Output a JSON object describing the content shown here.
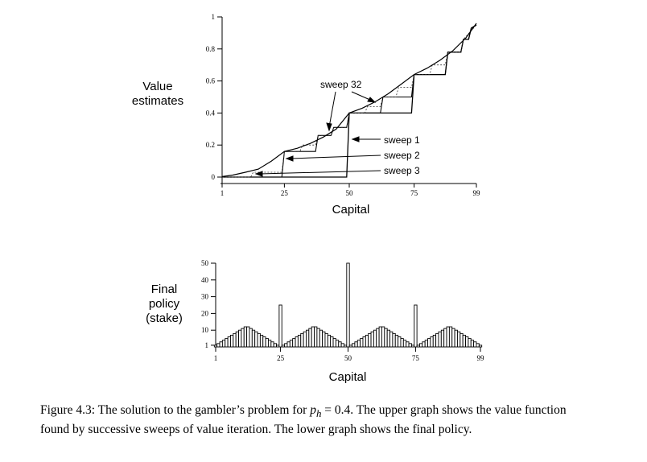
{
  "chart_data": [
    {
      "type": "line",
      "ylabel": [
        "Value",
        "estimates"
      ],
      "xlabel": "Capital",
      "xlim": [
        1,
        99
      ],
      "ylim": [
        0,
        1
      ],
      "x_ticks": [
        1,
        25,
        50,
        75,
        99
      ],
      "y_ticks": [
        "0",
        "0.2",
        "0.4",
        "0.6",
        "0.8",
        "1"
      ],
      "grid": false,
      "annotations": [
        "sweep 32",
        "sweep 1",
        "sweep 2",
        "sweep 3"
      ],
      "series": [
        {
          "name": "sweep 1",
          "x": [
            1,
            49,
            50,
            74,
            75,
            87,
            88,
            93,
            94,
            96,
            97,
            99
          ],
          "y": [
            0,
            0,
            0.4,
            0.4,
            0.64,
            0.64,
            0.78,
            0.78,
            0.86,
            0.86,
            0.93,
            0.95
          ]
        },
        {
          "name": "sweep 2",
          "x": [
            1,
            24,
            25,
            37,
            38,
            43,
            44,
            49,
            50,
            62,
            63,
            74,
            75,
            87,
            88,
            93,
            94,
            96,
            97,
            99
          ],
          "y": [
            0,
            0,
            0.16,
            0.16,
            0.26,
            0.26,
            0.31,
            0.31,
            0.4,
            0.4,
            0.5,
            0.5,
            0.64,
            0.64,
            0.78,
            0.78,
            0.86,
            0.86,
            0.93,
            0.95
          ]
        },
        {
          "name": "sweep 3",
          "x": [
            1,
            12,
            13,
            24,
            25,
            31,
            32,
            37,
            38,
            43,
            44,
            49,
            50,
            56,
            57,
            62,
            63,
            68,
            69,
            74,
            75,
            81,
            82,
            87,
            88,
            93,
            94,
            99
          ],
          "y": [
            0,
            0,
            0.03,
            0.03,
            0.16,
            0.16,
            0.2,
            0.2,
            0.26,
            0.26,
            0.31,
            0.31,
            0.4,
            0.4,
            0.44,
            0.44,
            0.5,
            0.5,
            0.56,
            0.56,
            0.64,
            0.64,
            0.7,
            0.7,
            0.78,
            0.78,
            0.86,
            0.95
          ]
        },
        {
          "name": "sweep 32",
          "x": [
            1,
            5,
            10,
            15,
            20,
            25,
            30,
            35,
            40,
            45,
            50,
            55,
            60,
            65,
            70,
            75,
            80,
            85,
            90,
            95,
            99
          ],
          "y": [
            0.003,
            0.012,
            0.03,
            0.05,
            0.1,
            0.16,
            0.18,
            0.21,
            0.25,
            0.3,
            0.4,
            0.43,
            0.47,
            0.52,
            0.58,
            0.64,
            0.68,
            0.73,
            0.79,
            0.87,
            0.96
          ]
        }
      ]
    },
    {
      "type": "bar",
      "ylabel": [
        "Final",
        "policy",
        "(stake)"
      ],
      "xlabel": "Capital",
      "xlim": [
        1,
        99
      ],
      "ylim": [
        0,
        50
      ],
      "x_ticks": [
        1,
        25,
        50,
        75,
        99
      ],
      "y_ticks": [
        "1",
        "10",
        "20",
        "30",
        "40",
        "50"
      ],
      "grid": false,
      "x": [
        1,
        2,
        3,
        4,
        5,
        6,
        7,
        8,
        9,
        10,
        11,
        12,
        13,
        14,
        15,
        16,
        17,
        18,
        19,
        20,
        21,
        22,
        23,
        24,
        25,
        26,
        27,
        28,
        29,
        30,
        31,
        32,
        33,
        34,
        35,
        36,
        37,
        38,
        39,
        40,
        41,
        42,
        43,
        44,
        45,
        46,
        47,
        48,
        49,
        50,
        51,
        52,
        53,
        54,
        55,
        56,
        57,
        58,
        59,
        60,
        61,
        62,
        63,
        64,
        65,
        66,
        67,
        68,
        69,
        70,
        71,
        72,
        73,
        74,
        75,
        76,
        77,
        78,
        79,
        80,
        81,
        82,
        83,
        84,
        85,
        86,
        87,
        88,
        89,
        90,
        91,
        92,
        93,
        94,
        95,
        96,
        97,
        98,
        99
      ],
      "values": [
        1,
        2,
        3,
        4,
        5,
        6,
        7,
        8,
        9,
        10,
        11,
        12,
        12,
        11,
        10,
        9,
        8,
        7,
        6,
        5,
        4,
        3,
        2,
        1,
        25,
        1,
        2,
        3,
        4,
        5,
        6,
        7,
        8,
        9,
        10,
        11,
        12,
        12,
        11,
        10,
        9,
        8,
        7,
        6,
        5,
        4,
        3,
        2,
        1,
        50,
        1,
        2,
        3,
        4,
        5,
        6,
        7,
        8,
        9,
        10,
        11,
        12,
        12,
        11,
        10,
        9,
        8,
        7,
        6,
        5,
        4,
        3,
        2,
        1,
        25,
        1,
        2,
        3,
        4,
        5,
        6,
        7,
        8,
        9,
        10,
        11,
        12,
        12,
        11,
        10,
        9,
        8,
        7,
        6,
        5,
        4,
        3,
        2,
        1
      ]
    }
  ],
  "caption": {
    "prefix": "Figure 4.3: The solution to the gambler’s problem for ",
    "var": "p",
    "sub": "h",
    "eq": " = 0.4.",
    "rest": " The upper graph shows the value function found by successive sweeps of value iteration. The lower graph shows the final policy."
  }
}
